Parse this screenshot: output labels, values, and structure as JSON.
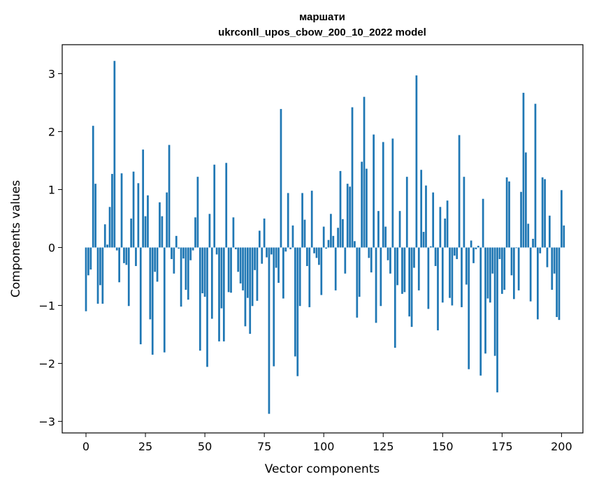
{
  "chart_data": {
    "type": "bar",
    "title_line1": "маршати",
    "title_line2": "ukrconll_upos_cbow_200_10_2022 model",
    "xlabel": "Vector components",
    "ylabel": "Components values",
    "xlim": [
      -10,
      209
    ],
    "ylim": [
      -3.2,
      3.5
    ],
    "xticks": [
      0,
      25,
      50,
      75,
      100,
      125,
      150,
      175,
      200
    ],
    "yticks": [
      -3,
      -2,
      -1,
      0,
      1,
      2,
      3
    ],
    "ytick_labels": [
      "−3",
      "−2",
      "−1",
      "0",
      "1",
      "2",
      "3"
    ],
    "bar_color": "#1f77b4",
    "grid": false,
    "legend": "none",
    "values": [
      -1.1,
      -0.48,
      -0.38,
      2.1,
      1.1,
      -0.97,
      -0.65,
      -0.97,
      0.4,
      0.05,
      0.7,
      1.27,
      3.22,
      -0.05,
      -0.6,
      1.28,
      -0.27,
      -0.3,
      -1.01,
      0.5,
      1.31,
      -0.32,
      1.11,
      -1.67,
      1.69,
      0.54,
      0.9,
      -1.24,
      -1.85,
      -0.42,
      -0.59,
      0.78,
      0.54,
      -1.81,
      0.95,
      1.77,
      -0.2,
      -0.45,
      0.2,
      -0.02,
      -1.02,
      -0.19,
      -0.73,
      -0.9,
      -0.22,
      -0.05,
      0.52,
      1.22,
      -1.78,
      -0.79,
      -0.85,
      -2.06,
      0.58,
      -1.23,
      1.43,
      -0.12,
      -1.62,
      -1.05,
      -1.62,
      1.46,
      -0.77,
      -0.78,
      0.52,
      -0.03,
      -0.42,
      -0.62,
      -0.74,
      -1.36,
      -0.87,
      -1.49,
      -1.01,
      -0.39,
      -0.92,
      0.29,
      -0.28,
      0.5,
      -0.17,
      -2.87,
      -0.12,
      -2.05,
      -0.35,
      -0.61,
      2.39,
      -0.88,
      -0.07,
      0.94,
      -0.03,
      0.38,
      -1.88,
      -2.22,
      -1.01,
      0.94,
      0.48,
      -0.32,
      -1.03,
      0.98,
      -0.1,
      -0.18,
      -0.3,
      -0.82,
      0.36,
      -0.02,
      0.13,
      0.58,
      0.2,
      -0.74,
      0.34,
      1.32,
      0.49,
      -0.45,
      1.1,
      1.05,
      2.42,
      0.11,
      -1.21,
      -0.85,
      1.48,
      2.6,
      1.36,
      -0.18,
      -0.43,
      1.95,
      -1.3,
      0.63,
      -1.01,
      1.82,
      0.36,
      -0.22,
      -0.45,
      1.88,
      -1.73,
      -0.65,
      0.63,
      -0.8,
      -0.77,
      1.22,
      -1.19,
      -1.37,
      -0.35,
      2.97,
      -0.74,
      1.34,
      0.27,
      1.07,
      -1.06,
      0.02,
      0.95,
      -0.32,
      -1.43,
      0.7,
      -0.95,
      0.5,
      0.81,
      -0.87,
      -1.0,
      -0.14,
      -0.2,
      1.94,
      -1.03,
      1.22,
      -0.64,
      -2.1,
      0.12,
      -0.27,
      -0.03,
      0.03,
      -2.21,
      0.84,
      -1.83,
      -0.88,
      -0.95,
      -0.45,
      -1.87,
      -2.5,
      -0.2,
      -0.8,
      -0.73,
      1.21,
      1.14,
      -0.48,
      -0.89,
      -0.01,
      -0.74,
      0.96,
      2.67,
      1.64,
      0.41,
      -0.93,
      0.15,
      2.48,
      -1.24,
      -0.1,
      1.21,
      1.18,
      -0.34,
      0.55,
      -0.73,
      -0.45,
      -1.2,
      -1.25,
      0.99,
      0.38
    ]
  }
}
